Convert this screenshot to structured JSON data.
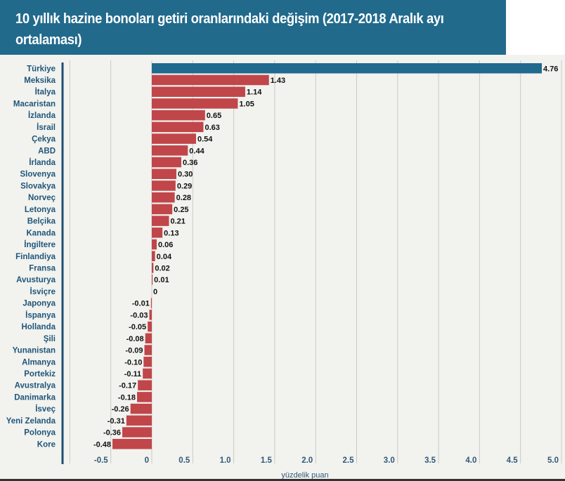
{
  "title": "10 yıllık hazine bonoları getiri oranlarındaki değişim (2017-2018 Aralık ayı ortalaması)",
  "colors": {
    "title_band": "#216a8c",
    "highlight_bar": "#1f6a8e",
    "bar": "#c0464a",
    "background": "#f2f2ef",
    "gridline": "#c9c9c9",
    "category_text": "#1f5679",
    "axis_line": "#1f4f70"
  },
  "chart_data": {
    "type": "bar",
    "orientation": "horizontal",
    "title": "10 yıllık hazine bonoları getiri oranlarındaki değişim (2017-2018 Aralık ayı ortalaması)",
    "xlabel": "yüzdelik puan",
    "ylabel": "",
    "xlim": [
      -1.0,
      5.0
    ],
    "xticks": [
      -0.5,
      0,
      0.5,
      1.0,
      1.5,
      2.0,
      2.5,
      3.0,
      3.5,
      4.0,
      4.5,
      5.0
    ],
    "xtick_labels": [
      "-0.5",
      "0",
      "0.5",
      "1.0",
      "1.5",
      "2.0",
      "2.5",
      "3.0",
      "3.5",
      "4.0",
      "4.5",
      "5.0"
    ],
    "gridlines": [
      -1.0,
      -0.5,
      0,
      0.5,
      1.0,
      1.5,
      2.0,
      2.5,
      3.0,
      3.5,
      4.0,
      4.5,
      5.0
    ],
    "grid": true,
    "legend": "none",
    "highlight_category": "Türkiye",
    "categories": [
      "Türkiye",
      "Meksika",
      "İtalya",
      "Macaristan",
      "İzlanda",
      "İsrail",
      "Çekya",
      "ABD",
      "İrlanda",
      "Slovenya",
      "Slovakya",
      "Norveç",
      "Letonya",
      "Belçika",
      "Kanada",
      "İngiltere",
      "Finlandiya",
      "Fransa",
      "Avusturya",
      "İsviçre",
      "Japonya",
      "İspanya",
      "Hollanda",
      "Şili",
      "Yunanistan",
      "Almanya",
      "Portekiz",
      "Avustralya",
      "Danimarka",
      "İsveç",
      "Yeni Zelanda",
      "Polonya",
      "Kore"
    ],
    "values": [
      4.76,
      1.43,
      1.14,
      1.05,
      0.65,
      0.63,
      0.54,
      0.44,
      0.36,
      0.3,
      0.29,
      0.28,
      0.25,
      0.21,
      0.13,
      0.06,
      0.04,
      0.02,
      0.01,
      0,
      -0.01,
      -0.03,
      -0.05,
      -0.08,
      -0.09,
      -0.1,
      -0.11,
      -0.17,
      -0.18,
      -0.26,
      -0.31,
      -0.36,
      -0.48
    ],
    "value_labels": [
      "4.76",
      "1.43",
      "1.14",
      "1.05",
      "0.65",
      "0.63",
      "0.54",
      "0.44",
      "0.36",
      "0.30",
      "0.29",
      "0.28",
      "0.25",
      "0.21",
      "0.13",
      "0.06",
      "0.04",
      "0.02",
      "0.01",
      "0",
      "-0.01",
      "-0.03",
      "-0.05",
      "-0.08",
      "-0.09",
      "-0.10",
      "-0.11",
      "-0.17",
      "-0.18",
      "-0.26",
      "-0.31",
      "-0.36",
      "-0.48"
    ]
  }
}
